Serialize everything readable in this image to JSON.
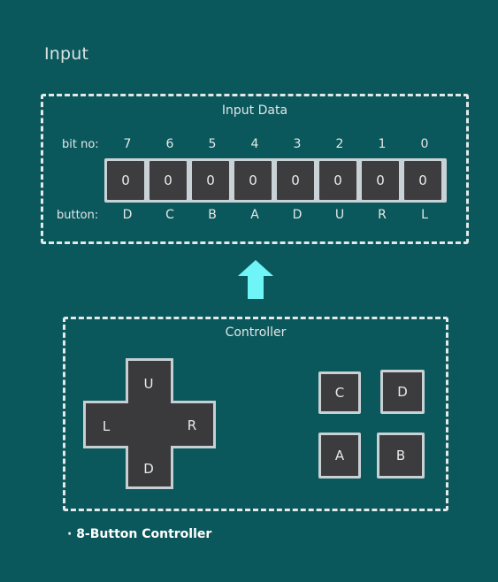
{
  "heading": "Input",
  "input_data": {
    "title": "Input Data",
    "bit_row_label": "bit no:",
    "button_row_label": "button:",
    "bits": [
      {
        "bit": "7",
        "value": "0",
        "button": "D"
      },
      {
        "bit": "6",
        "value": "0",
        "button": "C"
      },
      {
        "bit": "5",
        "value": "0",
        "button": "B"
      },
      {
        "bit": "4",
        "value": "0",
        "button": "A"
      },
      {
        "bit": "3",
        "value": "0",
        "button": "D"
      },
      {
        "bit": "2",
        "value": "0",
        "button": "U"
      },
      {
        "bit": "1",
        "value": "0",
        "button": "R"
      },
      {
        "bit": "0",
        "value": "0",
        "button": "L"
      }
    ]
  },
  "arrow_color": "#6ff4f7",
  "controller": {
    "title": "Controller",
    "dpad": {
      "up": "U",
      "left": "L",
      "right": "R",
      "down": "D"
    },
    "buttons": {
      "c": "C",
      "d": "D",
      "a": "A",
      "b": "B"
    }
  },
  "caption": "· 8-Button Controller"
}
